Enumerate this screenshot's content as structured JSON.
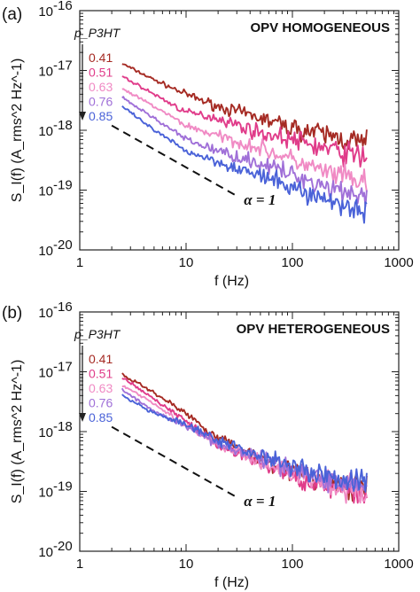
{
  "chart_data": [
    {
      "type": "line",
      "panel_label": "(a)",
      "title": "OPV HOMOGENEOUS",
      "xlabel": "f (Hz)",
      "ylabel": "S_I(f) (A_rms^2 Hz^-1)",
      "xscale": "log",
      "yscale": "log",
      "xlim": [
        1,
        1000
      ],
      "ylim": [
        1e-20,
        1e-16
      ],
      "x_ticks": [
        "1",
        "10",
        "100",
        "1000"
      ],
      "y_ticks": [
        {
          "base": "10",
          "exp": "-20"
        },
        {
          "base": "10",
          "exp": "-19"
        },
        {
          "base": "10",
          "exp": "-18"
        },
        {
          "base": "10",
          "exp": "-17"
        },
        {
          "base": "10",
          "exp": "-16"
        }
      ],
      "legend_title": "p_P3HT",
      "legend_position": "top-left",
      "series": [
        {
          "name": "0.41",
          "color": "#a52a23",
          "x": [
            2.5,
            5,
            10,
            20,
            50,
            100,
            200,
            500
          ],
          "y": [
            1.3e-17,
            7e-18,
            4e-18,
            2.5e-18,
            1.6e-18,
            1.1e-18,
            8.5e-19,
            6e-19
          ]
        },
        {
          "name": "0.51",
          "color": "#e03c8a",
          "x": [
            2.5,
            5,
            10,
            20,
            50,
            100,
            200,
            500
          ],
          "y": [
            8e-18,
            4e-18,
            2e-18,
            1.6e-18,
            9e-19,
            7e-19,
            5e-19,
            3.5e-19
          ]
        },
        {
          "name": "0.63",
          "color": "#f08ac4",
          "x": [
            2.5,
            5,
            10,
            20,
            50,
            100,
            200,
            500
          ],
          "y": [
            5e-18,
            2.5e-18,
            1.2e-18,
            8e-19,
            5e-19,
            3.2e-19,
            2e-19,
            1.3e-19
          ]
        },
        {
          "name": "0.76",
          "color": "#a070d8",
          "x": [
            2.5,
            5,
            10,
            20,
            50,
            100,
            200,
            500
          ],
          "y": [
            3.5e-18,
            1.6e-18,
            7e-19,
            4.5e-19,
            2.8e-19,
            1.8e-19,
            1.2e-19,
            8e-20
          ]
        },
        {
          "name": "0.85",
          "color": "#4a62d8",
          "x": [
            2.5,
            5,
            10,
            20,
            50,
            100,
            200,
            500
          ],
          "y": [
            2.5e-18,
            1e-18,
            4.5e-19,
            3e-19,
            1.7e-19,
            1.1e-19,
            7e-20,
            4.5e-20
          ]
        }
      ],
      "annotation": {
        "label": "α = 1",
        "ref_line": {
          "x": [
            2,
            30
          ],
          "y": [
            1.2e-18,
            8e-20
          ]
        }
      }
    },
    {
      "type": "line",
      "panel_label": "(b)",
      "title": "OPV HETEROGENEOUS",
      "xlabel": "f (Hz)",
      "ylabel": "S_I(f) (A_rms^2 Hz^-1)",
      "xscale": "log",
      "yscale": "log",
      "xlim": [
        1,
        1000
      ],
      "ylim": [
        1e-20,
        1e-16
      ],
      "x_ticks": [
        "1",
        "10",
        "100",
        "1000"
      ],
      "y_ticks": [
        {
          "base": "10",
          "exp": "-20"
        },
        {
          "base": "10",
          "exp": "-19"
        },
        {
          "base": "10",
          "exp": "-18"
        },
        {
          "base": "10",
          "exp": "-17"
        },
        {
          "base": "10",
          "exp": "-16"
        }
      ],
      "legend_title": "p_P3HT",
      "legend_position": "top-left",
      "series": [
        {
          "name": "0.41",
          "color": "#a52a23",
          "x": [
            2.5,
            5,
            10,
            20,
            50,
            100,
            200,
            500
          ],
          "y": [
            9e-18,
            4.5e-18,
            2e-18,
            8e-19,
            3.5e-19,
            2.2e-19,
            1.5e-19,
            1e-19
          ]
        },
        {
          "name": "0.51",
          "color": "#e03c8a",
          "x": [
            2.5,
            5,
            10,
            20,
            50,
            100,
            200,
            500
          ],
          "y": [
            8e-18,
            3.5e-18,
            1.5e-18,
            6e-19,
            3e-19,
            1.8e-19,
            1.2e-19,
            8e-20
          ]
        },
        {
          "name": "0.63",
          "color": "#f08ac4",
          "x": [
            2.5,
            5,
            10,
            20,
            50,
            100,
            200,
            500
          ],
          "y": [
            6e-18,
            3e-18,
            1.2e-18,
            6e-19,
            3e-19,
            2e-19,
            1.3e-19,
            9e-20
          ]
        },
        {
          "name": "0.76",
          "color": "#a070d8",
          "x": [
            2.5,
            5,
            10,
            20,
            50,
            100,
            200,
            500
          ],
          "y": [
            5e-18,
            2.2e-18,
            1.2e-18,
            6.5e-19,
            3.5e-19,
            2.5e-19,
            1.6e-19,
            1.2e-19
          ]
        },
        {
          "name": "0.85",
          "color": "#4a62d8",
          "x": [
            2.5,
            5,
            10,
            20,
            50,
            100,
            200,
            500
          ],
          "y": [
            4e-18,
            2e-18,
            1.3e-18,
            7e-19,
            4e-19,
            2.8e-19,
            1.8e-19,
            1.4e-19
          ]
        }
      ],
      "annotation": {
        "label": "α = 1",
        "ref_line": {
          "x": [
            2,
            30
          ],
          "y": [
            1.2e-18,
            8e-20
          ]
        }
      }
    }
  ]
}
